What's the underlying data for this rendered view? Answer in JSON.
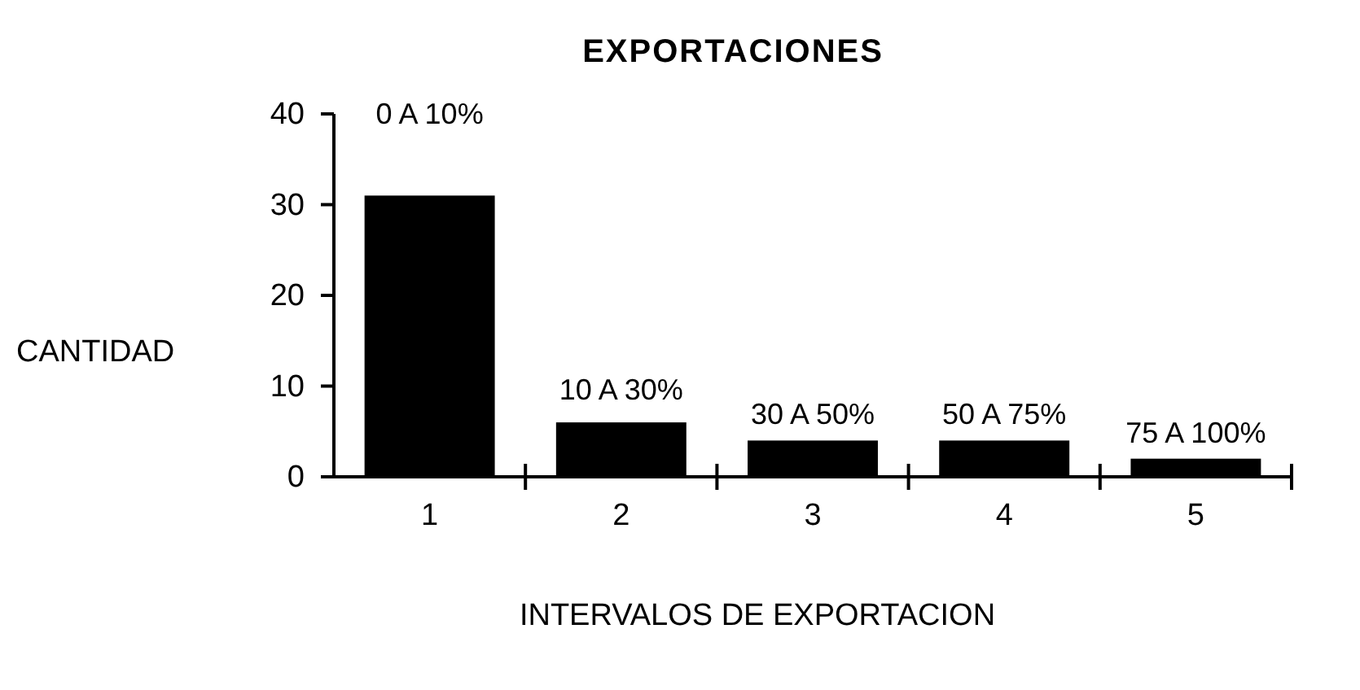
{
  "chart_data": {
    "type": "bar",
    "title": "EXPORTACIONES",
    "xlabel": "INTERVALOS DE EXPORTACION",
    "ylabel": "CANTIDAD",
    "categories": [
      "1",
      "2",
      "3",
      "4",
      "5"
    ],
    "values": [
      31,
      6,
      4,
      4,
      2
    ],
    "color": "#000000",
    "ylim": [
      0,
      40
    ],
    "yticks": [
      0,
      10,
      20,
      30,
      40
    ],
    "grid": false,
    "annotations": [
      "0 A 10%",
      "10 A 30%",
      "30 A 50%",
      "50 A 75%",
      "75 A 100%"
    ]
  }
}
